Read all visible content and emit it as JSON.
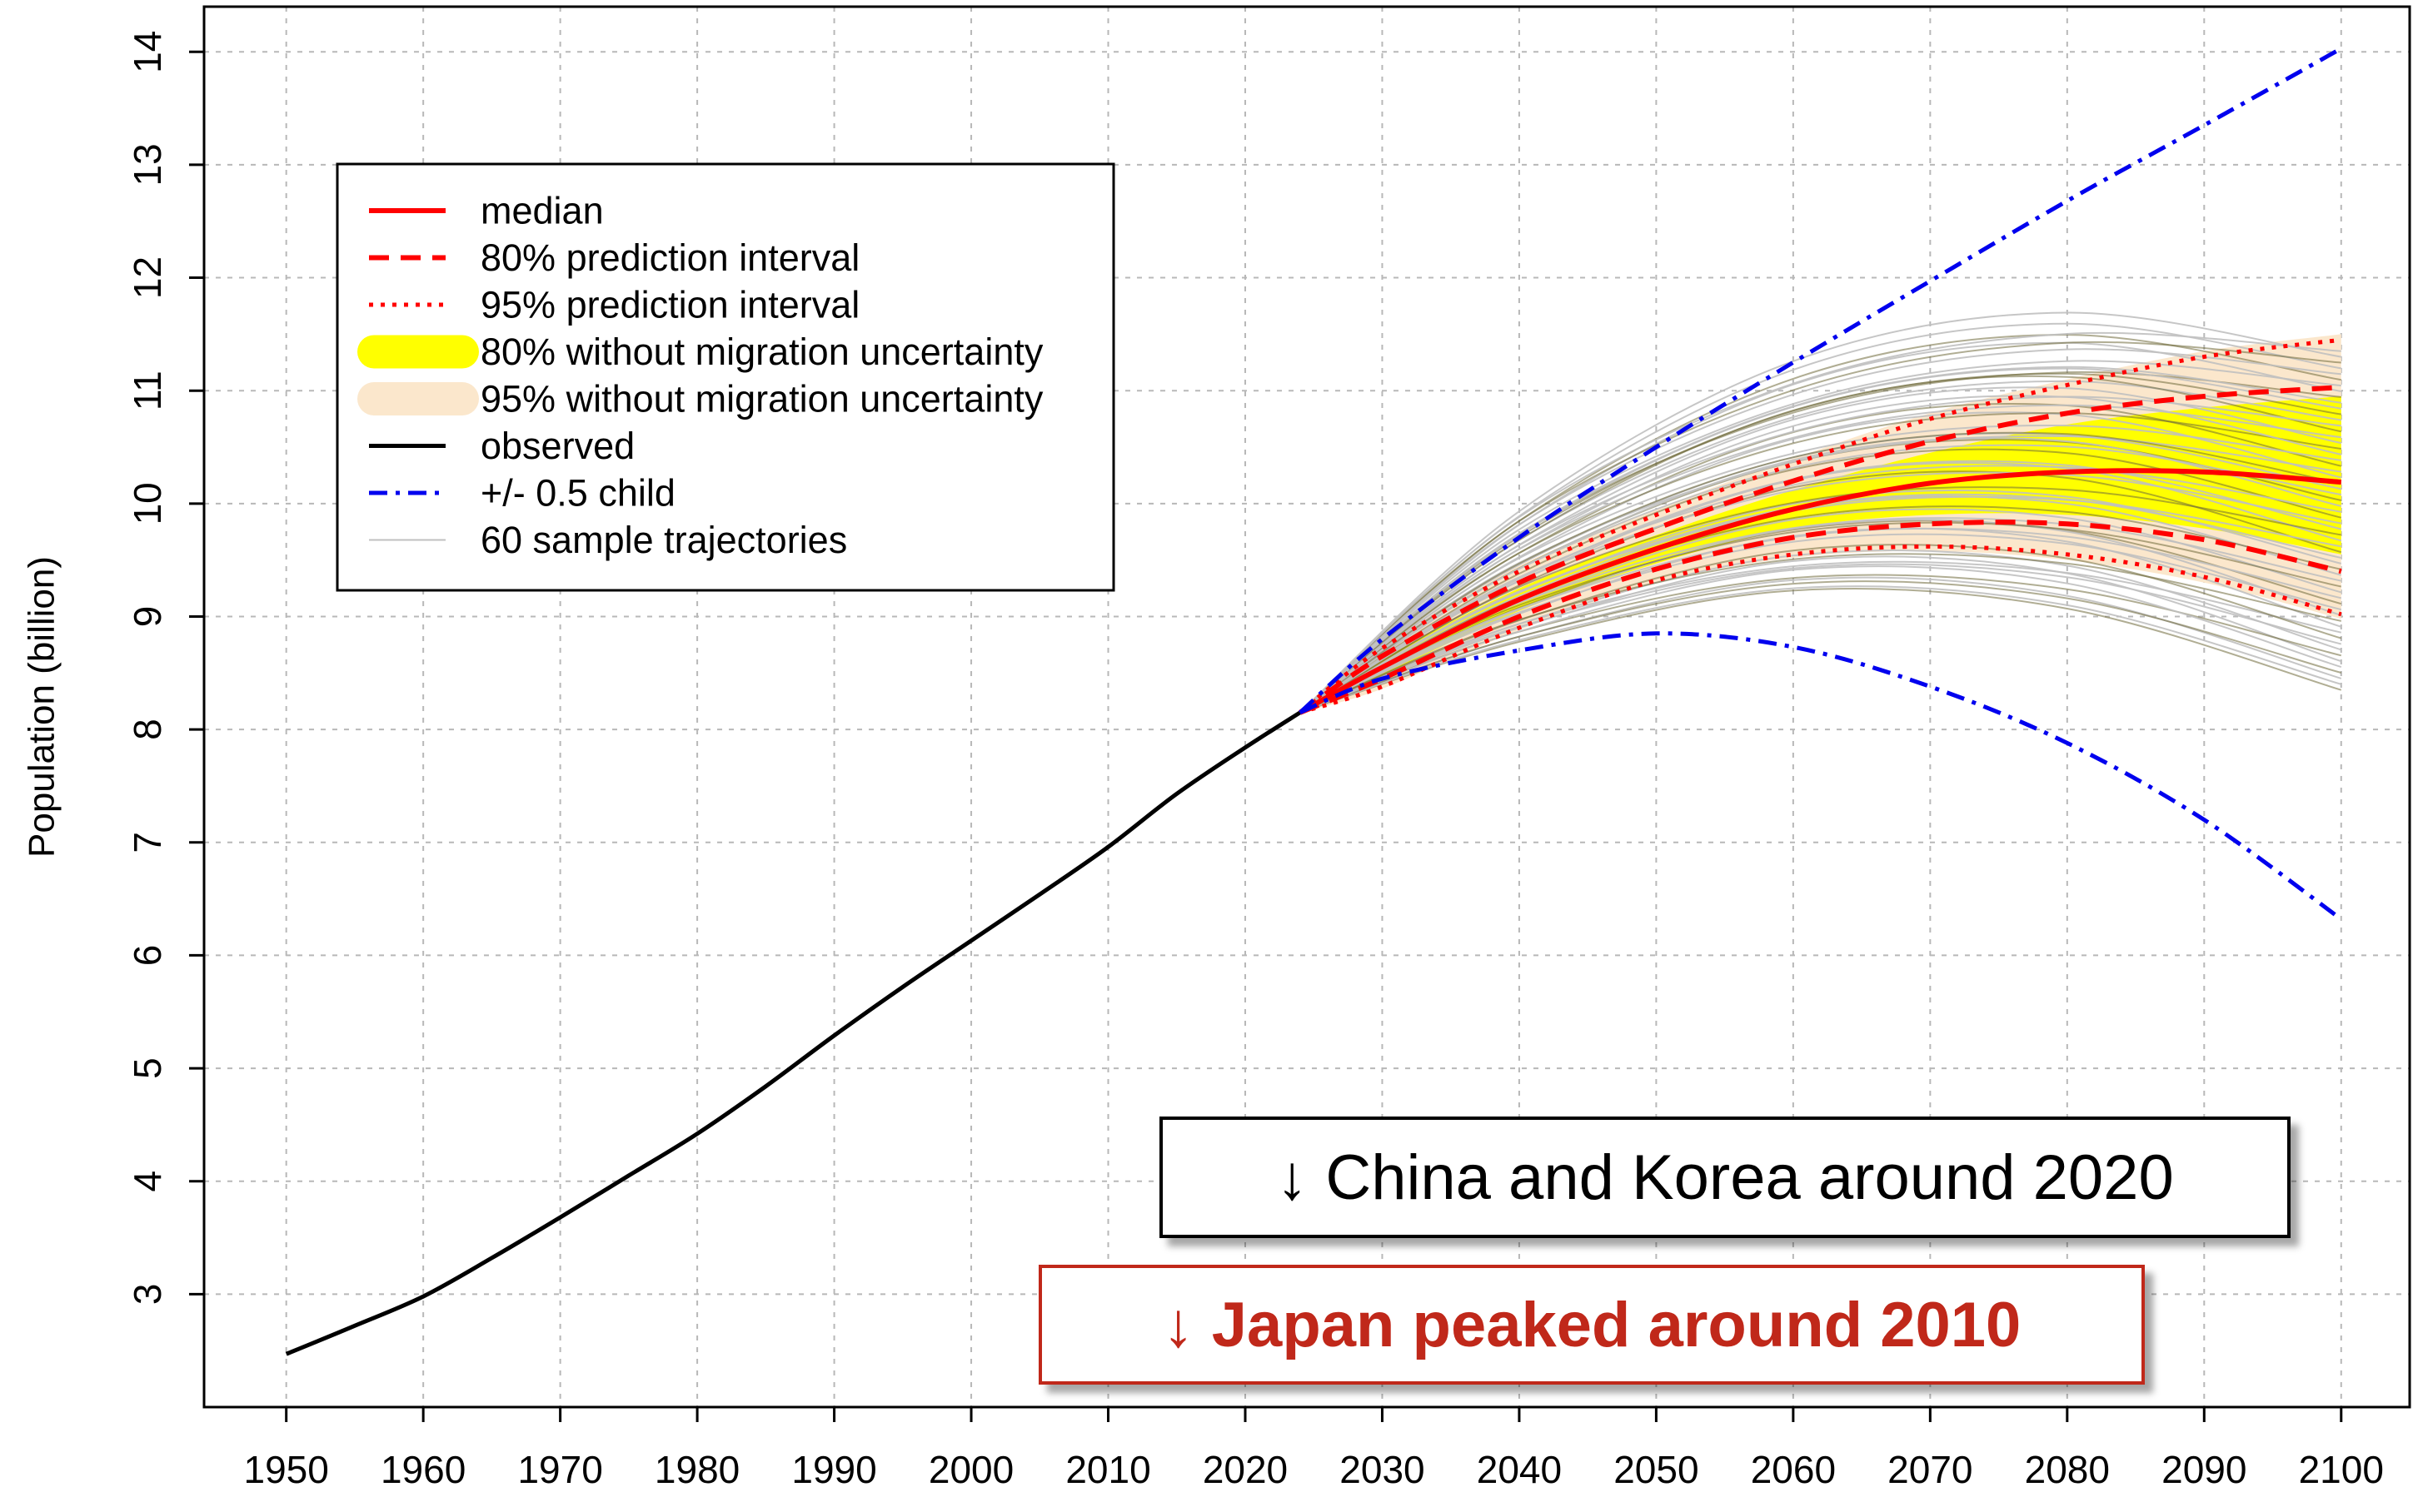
{
  "chart_data": {
    "type": "line",
    "title": "",
    "xlabel": "",
    "ylabel": "Population (billion)",
    "xlim": [
      1944,
      2105
    ],
    "ylim": [
      2,
      14.4
    ],
    "xticks": [
      1950,
      1960,
      1970,
      1980,
      1990,
      2000,
      2010,
      2020,
      2030,
      2040,
      2050,
      2060,
      2070,
      2080,
      2090,
      2100
    ],
    "yticks": [
      3,
      4,
      5,
      6,
      7,
      8,
      9,
      10,
      11,
      12,
      13,
      14
    ],
    "grid": true,
    "legend_position": "top-left",
    "legend": [
      {
        "label": "median",
        "style": "solid-red"
      },
      {
        "label": "80% prediction interval",
        "style": "dashed-red"
      },
      {
        "label": "95% prediction interval",
        "style": "dotted-red"
      },
      {
        "label": "80% without migration uncertainty",
        "style": "band-yellow"
      },
      {
        "label": "95% without migration uncertainty",
        "style": "band-beige"
      },
      {
        "label": "observed",
        "style": "solid-black"
      },
      {
        "label": "+/- 0.5 child",
        "style": "dashdot-blue"
      },
      {
        "label": "60 sample trajectories",
        "style": "thin-grey"
      }
    ],
    "colors": {
      "median": "#ff0000",
      "interval": "#ff0000",
      "band80": "#ffff00",
      "band95": "#fbe7cc",
      "observed": "#000000",
      "halfchild": "#0000ee",
      "trajectories": "#c0c0c0",
      "grid": "#b8b8b8",
      "japan_text": "#c0281a"
    },
    "observed": {
      "x": [
        1950,
        1955,
        1960,
        1965,
        1970,
        1975,
        1980,
        1985,
        1990,
        1995,
        2000,
        2005,
        2010,
        2015,
        2020,
        2024
      ],
      "y": [
        2.47,
        2.72,
        2.98,
        3.32,
        3.68,
        4.05,
        4.42,
        4.84,
        5.29,
        5.72,
        6.13,
        6.54,
        6.96,
        7.43,
        7.84,
        8.15
      ]
    },
    "projection_x": [
      2024,
      2030,
      2040,
      2050,
      2060,
      2070,
      2080,
      2090,
      2100
    ],
    "median": [
      8.15,
      8.55,
      9.15,
      9.6,
      9.95,
      10.18,
      10.28,
      10.28,
      10.19
    ],
    "pi80_upper": [
      8.15,
      8.65,
      9.3,
      9.78,
      10.2,
      10.55,
      10.8,
      10.95,
      11.03
    ],
    "pi80_lower": [
      8.15,
      8.45,
      9.0,
      9.42,
      9.7,
      9.82,
      9.82,
      9.68,
      9.4
    ],
    "pi95_upper": [
      8.15,
      8.72,
      9.4,
      9.9,
      10.35,
      10.75,
      11.05,
      11.3,
      11.45
    ],
    "pi95_lower": [
      8.15,
      8.38,
      8.9,
      9.32,
      9.55,
      9.62,
      9.55,
      9.35,
      9.02
    ],
    "band80_upper": [
      8.15,
      8.62,
      9.25,
      9.72,
      10.12,
      10.45,
      10.7,
      10.85,
      10.95
    ],
    "band80_lower": [
      8.15,
      8.48,
      9.05,
      9.47,
      9.78,
      9.9,
      9.9,
      9.78,
      9.55
    ],
    "band95_upper": [
      8.15,
      8.75,
      9.45,
      9.95,
      10.4,
      10.8,
      11.1,
      11.35,
      11.5
    ],
    "band95_lower": [
      8.15,
      8.36,
      8.88,
      9.3,
      9.52,
      9.58,
      9.5,
      9.3,
      8.98
    ],
    "plus_half_child": {
      "x": [
        2024,
        2030,
        2040,
        2050,
        2060,
        2070,
        2080,
        2090,
        2100
      ],
      "y": [
        8.15,
        8.8,
        9.7,
        10.5,
        11.25,
        11.97,
        12.68,
        13.35,
        14.03
      ]
    },
    "minus_half_child": {
      "x": [
        2024,
        2030,
        2040,
        2050,
        2060,
        2070,
        2080,
        2090,
        2100
      ],
      "y": [
        8.15,
        8.45,
        8.7,
        8.85,
        8.73,
        8.38,
        7.88,
        7.2,
        6.32
      ]
    },
    "sample_trajectories": {
      "count": 60,
      "x": [
        2024,
        2040,
        2060,
        2080,
        2100
      ],
      "end_range_2100": [
        8.35,
        11.35
      ]
    },
    "annotations": [
      {
        "id": "china",
        "text": "↓ China and Korea around 2020",
        "color": "#000000"
      },
      {
        "id": "japan",
        "text": "↓ Japan peaked around 2010",
        "color": "#c0281a"
      }
    ]
  }
}
